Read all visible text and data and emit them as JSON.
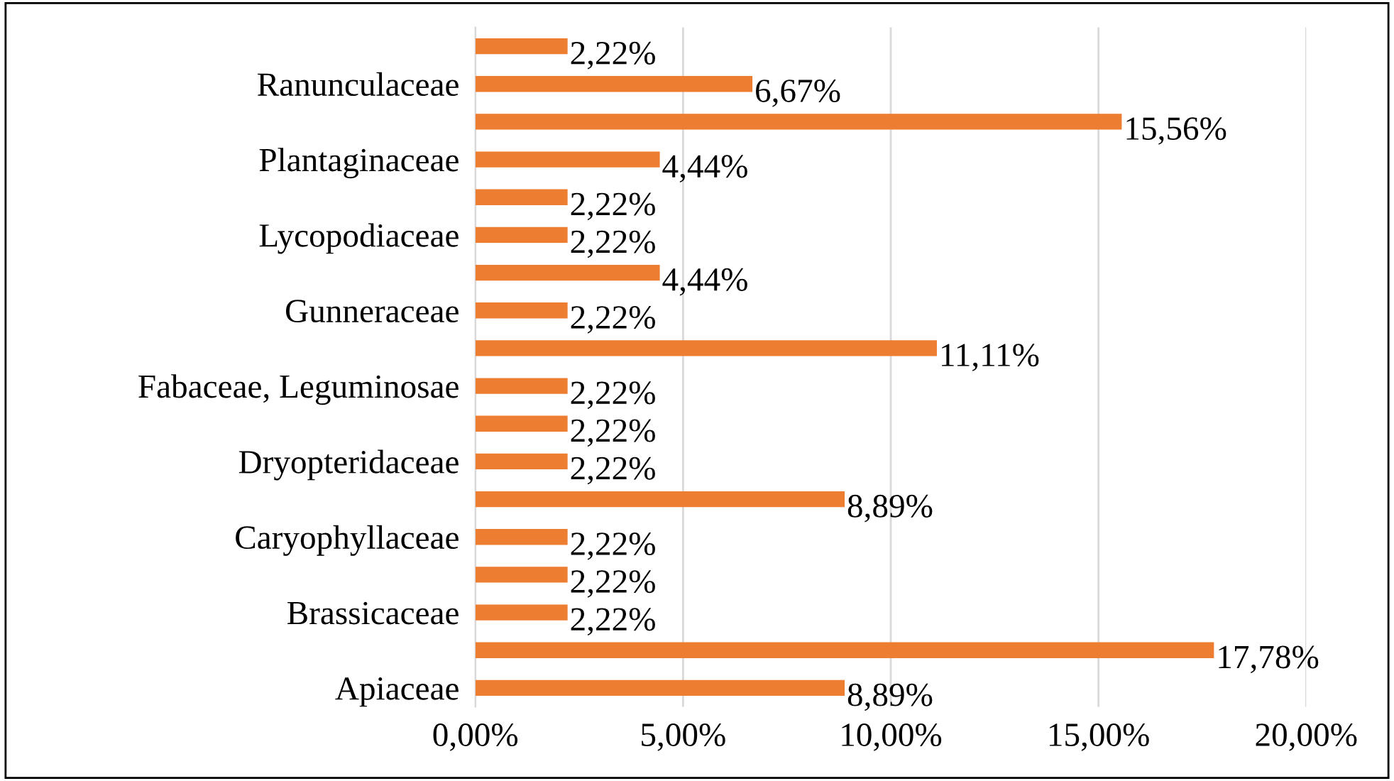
{
  "chart_data": {
    "type": "bar",
    "orientation": "horizontal",
    "categories": [
      null,
      "Ranunculaceae",
      null,
      "Plantaginaceae",
      null,
      "Lycopodiaceae",
      null,
      "Gunneraceae",
      null,
      "Fabaceae, Leguminosae",
      null,
      "Dryopteridaceae",
      null,
      "Caryophyllaceae",
      null,
      "Brassicaceae",
      null,
      "Apiaceae"
    ],
    "values": [
      2.22,
      6.67,
      15.56,
      4.44,
      2.22,
      2.22,
      4.44,
      2.22,
      11.11,
      2.22,
      2.22,
      2.22,
      8.89,
      2.22,
      2.22,
      2.22,
      17.78,
      8.89
    ],
    "value_labels": [
      "2,22%",
      "6,67%",
      "15,56%",
      "4,44%",
      "2,22%",
      "2,22%",
      "4,44%",
      "2,22%",
      "11,11%",
      "2,22%",
      "2,22%",
      "2,22%",
      "8,89%",
      "2,22%",
      "2,22%",
      "2,22%",
      "17,78%",
      "8,89%"
    ],
    "color": "#ed7d31",
    "xlim": [
      0,
      20
    ],
    "xticks": [
      {
        "value": 0,
        "label": "0,00%"
      },
      {
        "value": 5,
        "label": "5,00%"
      },
      {
        "value": 10,
        "label": "10,00%"
      },
      {
        "value": 15,
        "label": "15,00%"
      },
      {
        "value": 20,
        "label": "20,00%"
      }
    ],
    "grid": "x",
    "legend": false
  }
}
